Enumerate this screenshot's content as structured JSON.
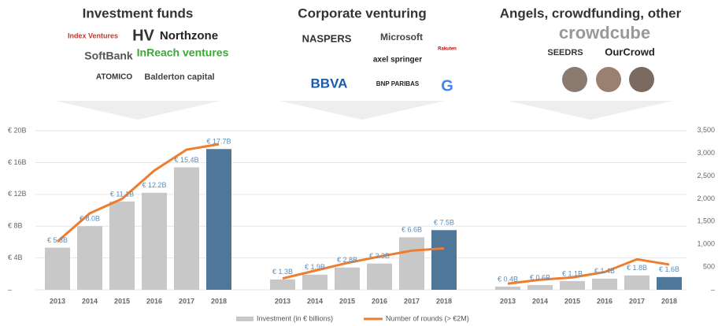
{
  "chart_data": {
    "type": "bar",
    "ylim": [
      0,
      20.6
    ],
    "yticks": [
      {
        "value": 0,
        "label": "–"
      },
      {
        "value": 4,
        "label": "€ 4B"
      },
      {
        "value": 8,
        "label": "€ 8B"
      },
      {
        "value": 12,
        "label": "€ 12B"
      },
      {
        "value": 16,
        "label": "€ 16B"
      },
      {
        "value": 20,
        "label": "€ 20B"
      }
    ],
    "y2lim": [
      0,
      3600
    ],
    "y2ticks": [
      {
        "value": 0,
        "label": "–"
      },
      500,
      {
        "value": 1000,
        "label": "1,000"
      },
      {
        "value": 1500,
        "label": "1,500"
      },
      {
        "value": 2000,
        "label": "2,000"
      },
      {
        "value": 2500,
        "label": "2,500"
      },
      {
        "value": 3000,
        "label": "3,000"
      },
      {
        "value": 3500,
        "label": "3,500"
      }
    ],
    "series": [
      {
        "name": "Investment (in € billions)",
        "color": "#c8c8c8",
        "highlight_color": "#4f7799"
      },
      {
        "name": "Number of rounds (> €2M)",
        "color": "#ed7d31",
        "axis": "y2"
      }
    ],
    "panels": [
      {
        "title": "Investment funds",
        "logos": [
          "Index Ventures",
          "HV",
          "Northzone",
          "SoftBank",
          "InReach ventures",
          "ATOMICO",
          "Balderton capital"
        ],
        "categories": [
          "2013",
          "2014",
          "2015",
          "2016",
          "2017",
          "2018"
        ],
        "values": [
          5.3,
          8.0,
          11.1,
          12.2,
          15.4,
          17.7
        ],
        "value_labels": [
          "€ 5.3B",
          "€ 8.0B",
          "€ 11.1B",
          "€ 12.2B",
          "€ 15.4B",
          "€ 17.7B"
        ],
        "rounds": [
          1060,
          1680,
          2000,
          2620,
          3080,
          3200
        ]
      },
      {
        "title": "Corporate venturing",
        "logos": [
          "NASPERS",
          "Microsoft",
          "Rakuten",
          "axel springer",
          "BBVA",
          "BNP PARIBAS",
          "G"
        ],
        "categories": [
          "2013",
          "2014",
          "2015",
          "2016",
          "2017",
          "2018"
        ],
        "values": [
          1.3,
          1.9,
          2.8,
          3.3,
          6.6,
          7.5
        ],
        "value_labels": [
          "€ 1.3B",
          "€ 1.9B",
          "€ 2.8B",
          "€ 3.3B",
          "€ 6.6B",
          "€ 7.5B"
        ],
        "rounds": [
          250,
          420,
          590,
          730,
          860,
          910
        ]
      },
      {
        "title": "Angels, crowdfunding, other",
        "logos": [
          "crowdcube",
          "SEEDRS",
          "OurCrowd"
        ],
        "categories": [
          "2013",
          "2014",
          "2015",
          "2016",
          "2017",
          "2018"
        ],
        "values": [
          0.4,
          0.6,
          1.1,
          1.4,
          1.8,
          1.6
        ],
        "value_labels": [
          "€ 0.4B",
          "€ 0.6B",
          "€ 1.1B",
          "€ 1.4B",
          "€ 1.8B",
          "€ 1.6B"
        ],
        "rounds": [
          135,
          220,
          270,
          390,
          670,
          555
        ]
      }
    ]
  }
}
